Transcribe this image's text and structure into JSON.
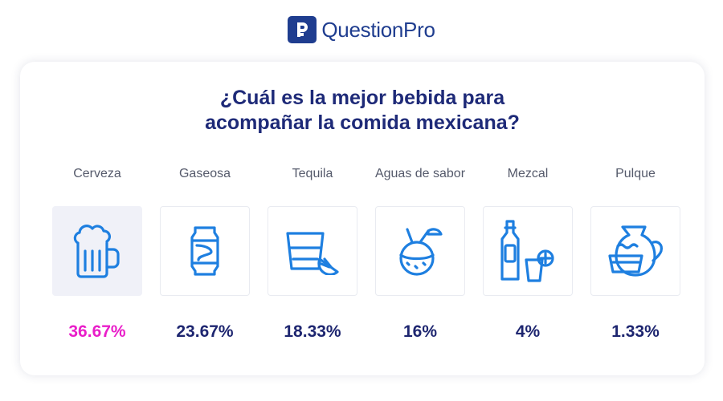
{
  "brand": {
    "name": "QuestionPro",
    "logo_icon": "questionpro-logo-icon",
    "color": "#1f3d8f"
  },
  "chart_data": {
    "type": "bar",
    "title_lines": [
      "¿Cuál es la mejor bebida para",
      "acompañar la comida mexicana?"
    ],
    "categories": [
      "Cerveza",
      "Gaseosa",
      "Tequila",
      "Aguas de sabor",
      "Mezcal",
      "Pulque"
    ],
    "values": [
      36.67,
      23.67,
      18.33,
      16,
      4,
      1.33
    ],
    "value_labels": [
      "36.67%",
      "23.67%",
      "18.33%",
      "16%",
      "4%",
      "1.33%"
    ],
    "icons": [
      "beer-mug-icon",
      "soda-can-icon",
      "tequila-shot-icon",
      "coconut-drink-icon",
      "mezcal-bottle-icon",
      "pulque-jug-icon"
    ],
    "highlight_index": 0,
    "colors": {
      "icon": "#1e7fe0",
      "value": "#1e2670",
      "highlight": "#e91ec9",
      "title": "#1e2a78"
    }
  }
}
